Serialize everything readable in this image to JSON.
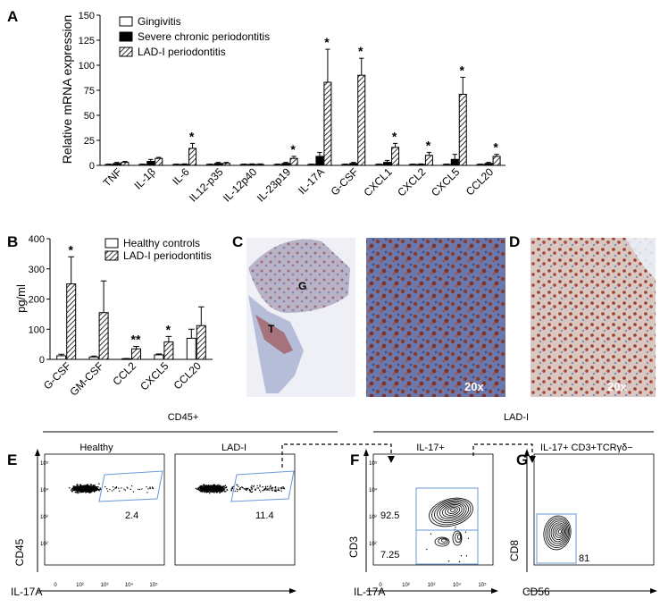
{
  "panels": {
    "A": "A",
    "B": "B",
    "C": "C",
    "D": "D",
    "E": "E",
    "F": "F",
    "G": "G"
  },
  "colors": {
    "black": "#000000",
    "gate": "#6a97d6",
    "stain_brown": "#8a3b2a",
    "stain_blue": "#5a6aa8"
  },
  "chart_data": [
    {
      "type": "bar",
      "panel": "A",
      "ylabel": "Relative mRNA expression",
      "ylim": [
        0,
        150
      ],
      "yticks": [
        "0",
        "25",
        "50",
        "75",
        "100",
        "125",
        "150"
      ],
      "categories": [
        "TNF",
        "IL-1β",
        "IL-6",
        "IL12-p35",
        "IL-12p40",
        "IL-23p19",
        "IL-17A",
        "G-CSF",
        "CXCL1",
        "CXCL2",
        "CXCL5",
        "CCL20"
      ],
      "series": [
        {
          "name": "Gingivitis",
          "style": "open",
          "values": [
            1,
            1,
            1,
            1,
            1,
            1,
            1,
            1,
            1,
            1,
            1,
            1
          ],
          "errors": [
            0.3,
            0.3,
            0.3,
            0.3,
            0.3,
            0.3,
            0.3,
            0.3,
            0.3,
            0.3,
            0.3,
            0.3
          ]
        },
        {
          "name": "Severe chronic periodontitis",
          "style": "filled",
          "values": [
            2,
            4,
            1,
            2,
            1,
            2,
            9,
            2,
            3,
            1,
            6,
            2
          ],
          "errors": [
            1,
            2,
            0.5,
            1,
            0.5,
            1,
            4,
            1,
            2,
            0.5,
            5,
            1
          ]
        },
        {
          "name": "LAD-I periodontitis",
          "style": "hatched",
          "values": [
            3,
            7,
            17,
            2,
            1,
            7,
            83,
            90,
            18,
            10,
            71,
            9
          ],
          "errors": [
            1,
            1,
            5,
            1,
            0.5,
            2,
            33,
            17,
            4,
            3,
            17,
            2
          ]
        }
      ],
      "significance": [
        "",
        "",
        "*",
        "",
        "",
        "*",
        "*",
        "*",
        "*",
        "*",
        "*",
        "*"
      ]
    },
    {
      "type": "bar",
      "panel": "B",
      "ylabel": "pg/ml",
      "ylim": [
        0,
        400
      ],
      "yticks": [
        "0",
        "100",
        "200",
        "300",
        "400"
      ],
      "categories": [
        "G-CSF",
        "GM-CSF",
        "CCL2",
        "CXCL5",
        "CCL20"
      ],
      "series": [
        {
          "name": "Healthy controls",
          "style": "open",
          "values": [
            12,
            8,
            2,
            15,
            70
          ],
          "errors": [
            5,
            3,
            1,
            3,
            30
          ]
        },
        {
          "name": "LAD-I periodontitis",
          "style": "hatched",
          "values": [
            250,
            155,
            35,
            58,
            112
          ],
          "errors": [
            90,
            105,
            8,
            18,
            62
          ]
        }
      ],
      "significance": [
        "*",
        "",
        "**",
        "*",
        ""
      ]
    }
  ],
  "panel_C": {
    "label_G": "G",
    "label_T": "T",
    "magnification": "20x"
  },
  "panel_D": {
    "magnification": "20x"
  },
  "flow": {
    "group_cd45": "CD45+",
    "group_ladi": "LAD-I",
    "E_healthy": {
      "title": "Healthy",
      "value": "2.4"
    },
    "E_ladi": {
      "title": "LAD-I",
      "value": "11.4"
    },
    "E_xaxis": "IL-17A",
    "E_yaxis": "CD45",
    "F": {
      "title": "IL-17+",
      "upper": "92.5",
      "lower": "7.25",
      "xaxis": "IL-17A",
      "yaxis": "CD3"
    },
    "G": {
      "title": "IL-17+ CD3+TCRγδ−",
      "value": "81",
      "xaxis": "CD56",
      "yaxis": "CD8"
    },
    "axis_ticks_x": [
      "0",
      "10²",
      "10³",
      "10⁴",
      "10⁵"
    ],
    "axis_ticks_y": [
      "10²",
      "10³",
      "10⁴",
      "10⁵"
    ]
  }
}
